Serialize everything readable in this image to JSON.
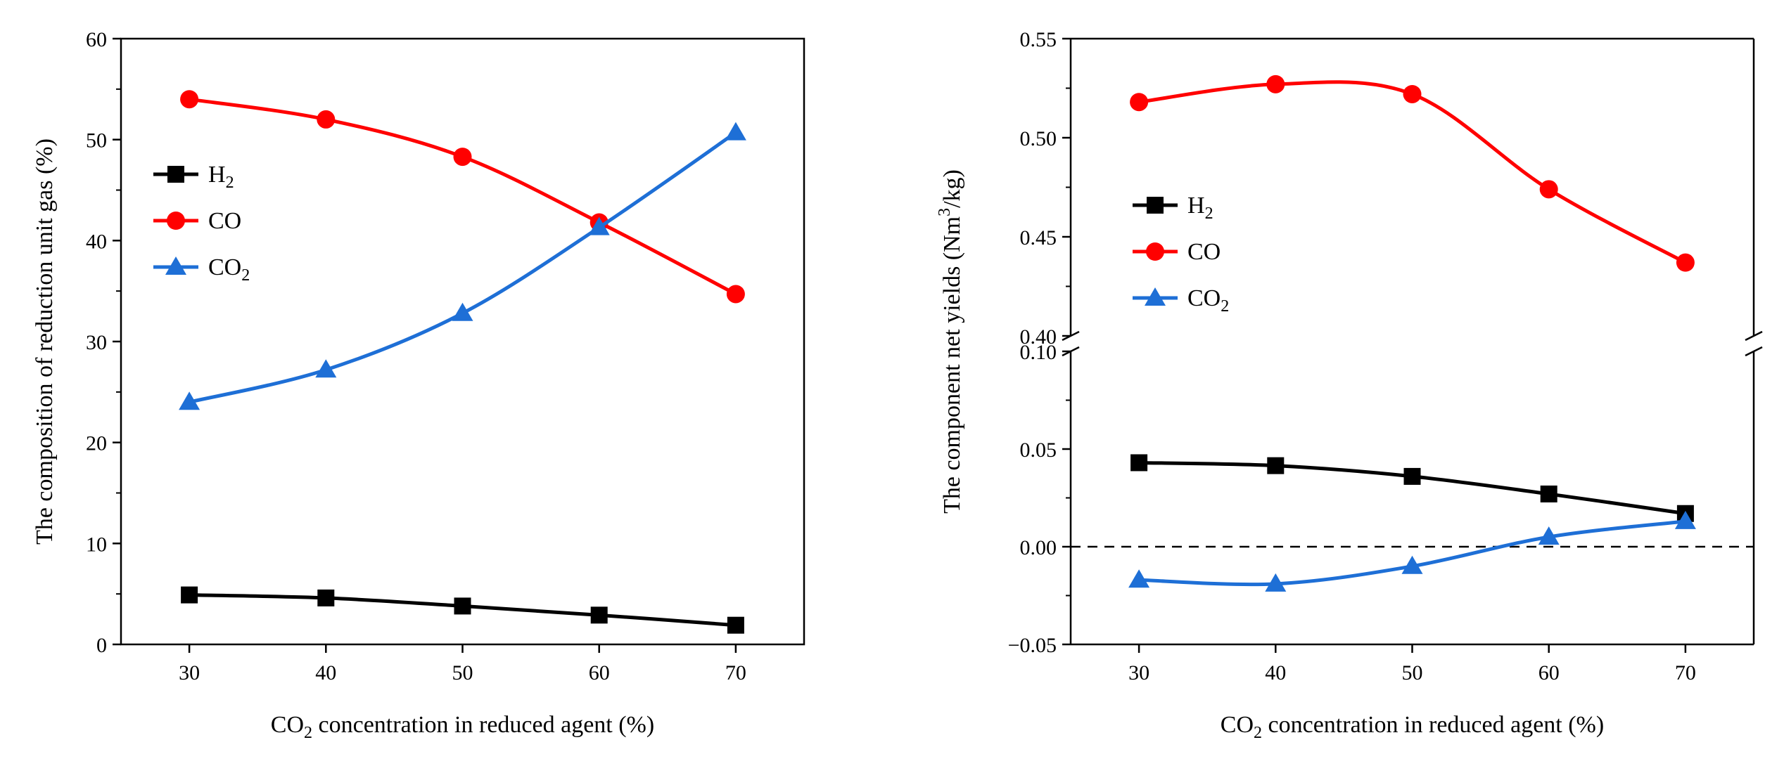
{
  "chart_data": [
    {
      "type": "line",
      "title": "",
      "xlabel": {
        "pre": "CO",
        "sub": "2",
        "post": " concentration in reduced agent (%)"
      },
      "ylabel": "The composition of reduction unit gas (%)",
      "x": [
        30,
        40,
        50,
        60,
        70
      ],
      "xticks": [
        "30",
        "40",
        "50",
        "60",
        "70"
      ],
      "xlim": [
        25,
        75
      ],
      "ylim": [
        0,
        60
      ],
      "yticks": [
        "0",
        "10",
        "20",
        "30",
        "40",
        "50",
        "60"
      ],
      "legend_position": "center-left",
      "series": [
        {
          "name": "H",
          "sub": "2",
          "marker": "square",
          "color": "#000000",
          "values": [
            4.9,
            4.6,
            3.8,
            2.9,
            1.9
          ]
        },
        {
          "name": "CO",
          "sub": "",
          "marker": "circle",
          "color": "#ff0000",
          "values": [
            54.0,
            52.0,
            48.3,
            41.8,
            34.7
          ]
        },
        {
          "name": "CO",
          "sub": "2",
          "marker": "triangle",
          "color": "#1e6fd6",
          "values": [
            24.0,
            27.2,
            32.8,
            41.3,
            50.7
          ]
        }
      ]
    },
    {
      "type": "line",
      "title": "",
      "xlabel": {
        "pre": "CO",
        "sub": "2",
        "post": " concentration in reduced agent (%)"
      },
      "ylabel": {
        "pre": "The component net yields (Nm",
        "sup": "3",
        "post": "/kg)"
      },
      "x": [
        30,
        40,
        50,
        60,
        70
      ],
      "xticks": [
        "30",
        "40",
        "50",
        "60",
        "70"
      ],
      "xlim": [
        25,
        75
      ],
      "broken_axis": true,
      "ylim_lower": [
        -0.05,
        0.1
      ],
      "ylim_upper": [
        0.4,
        0.55
      ],
      "yticks_lower": [
        "−0.05",
        "0.00",
        "0.05",
        "0.10"
      ],
      "yticks_upper": [
        "0.40",
        "0.45",
        "0.50",
        "0.55"
      ],
      "reference_line": 0,
      "legend_position": "center-left",
      "series": [
        {
          "name": "H",
          "sub": "2",
          "marker": "square",
          "color": "#000000",
          "values": [
            0.043,
            0.0415,
            0.036,
            0.027,
            0.017
          ]
        },
        {
          "name": "CO",
          "sub": "",
          "marker": "circle",
          "color": "#ff0000",
          "values": [
            0.518,
            0.527,
            0.522,
            0.474,
            0.437
          ]
        },
        {
          "name": "CO",
          "sub": "2",
          "marker": "triangle",
          "color": "#1e6fd6",
          "values": [
            -0.017,
            -0.019,
            -0.01,
            0.005,
            0.013
          ]
        }
      ]
    }
  ]
}
